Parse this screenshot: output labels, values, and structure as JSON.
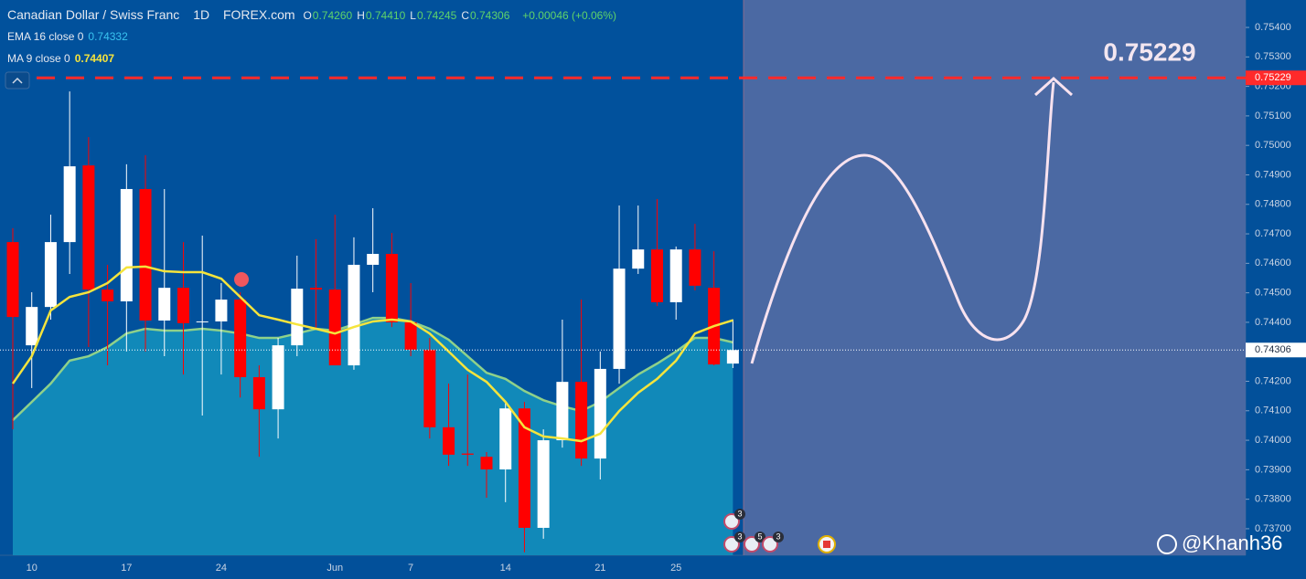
{
  "chart_data": {
    "type": "candlestick",
    "title": "Canadian Dollar / Swiss Franc",
    "interval": "1D",
    "source": "FOREX.com",
    "ohlc_header": [
      {
        "label": "O",
        "value": "0.74260"
      },
      {
        "label": "H",
        "value": "0.74410"
      },
      {
        "label": "L",
        "value": "0.74245"
      },
      {
        "label": "C",
        "value": "0.74306"
      }
    ],
    "change": "+0.00046 (+0.06%)",
    "categories": [
      null,
      "10",
      null,
      null,
      null,
      null,
      "17",
      null,
      null,
      null,
      null,
      "24",
      null,
      null,
      null,
      null,
      null,
      "Jun",
      null,
      null,
      null,
      "7",
      null,
      null,
      null,
      null,
      "14",
      null,
      null,
      null,
      null,
      "21",
      null,
      null,
      null,
      "25",
      null,
      null,
      null
    ],
    "open": [
      0.74672,
      0.74322,
      0.74452,
      0.74672,
      0.74932,
      0.74511,
      0.74471,
      0.74852,
      0.74406,
      0.74517,
      0.744,
      0.74403,
      0.74477,
      0.74214,
      0.74105,
      0.74322,
      0.74517,
      0.74511,
      0.74254,
      0.74595,
      0.74632,
      0.744,
      0.74307,
      0.74044,
      0.73955,
      0.73944,
      0.73901,
      0.74108,
      0.73703,
      0.74,
      0.74198,
      0.73938,
      0.74242,
      0.74582,
      0.74647,
      0.74468,
      0.74647,
      0.74517,
      0.7426
    ],
    "high": [
      0.74719,
      0.74502,
      0.74765,
      0.75183,
      0.75028,
      0.74595,
      0.74936,
      0.74967,
      0.74852,
      0.74672,
      0.74694,
      0.74533,
      0.74502,
      0.74254,
      0.74347,
      0.74626,
      0.74682,
      0.74765,
      0.74688,
      0.74787,
      0.74703,
      0.74533,
      0.74347,
      0.74192,
      0.74223,
      0.7396,
      0.7413,
      0.7413,
      0.74037,
      0.74409,
      0.74477,
      0.74301,
      0.74796,
      0.74796,
      0.74818,
      0.74657,
      0.74734,
      0.74641,
      0.7441
    ],
    "low": [
      0.74037,
      0.74177,
      0.74409,
      0.74564,
      0.74316,
      0.74254,
      0.74301,
      0.74301,
      0.74285,
      0.74223,
      0.74084,
      0.74223,
      0.74145,
      0.73944,
      0.74006,
      0.74285,
      0.74378,
      0.74254,
      0.74239,
      0.74502,
      0.74384,
      0.74285,
      0.74006,
      0.73913,
      0.73913,
      0.73805,
      0.7379,
      0.7362,
      0.73666,
      0.73975,
      0.73913,
      0.73867,
      0.74192,
      0.74564,
      0.74455,
      0.74409,
      0.74508,
      0.74254,
      0.74245
    ],
    "close": [
      0.74418,
      0.74452,
      0.74672,
      0.74929,
      0.74511,
      0.74471,
      0.74852,
      0.74406,
      0.74517,
      0.74397,
      0.74403,
      0.74477,
      0.74214,
      0.74105,
      0.74322,
      0.74514,
      0.74511,
      0.74254,
      0.74595,
      0.74632,
      0.744,
      0.74307,
      0.74044,
      0.73951,
      0.73951,
      0.73901,
      0.74108,
      0.73703,
      0.74,
      0.74198,
      0.73938,
      0.74242,
      0.74582,
      0.74647,
      0.74468,
      0.74647,
      0.74524,
      0.74257,
      0.74306
    ],
    "up_color": "#ffffff",
    "down_color": "#ff0000",
    "overlays": [
      {
        "name": "EMA 16 close 0",
        "last_label": "0.74332",
        "color": "#8fd18a",
        "fill": "#1189b9",
        "label_color": "#39c3f0",
        "values": [
          0.74068,
          0.7413,
          0.74192,
          0.7427,
          0.74285,
          0.74316,
          0.74362,
          0.74378,
          0.74372,
          0.74372,
          0.74378,
          0.74372,
          0.74362,
          0.74347,
          0.74347,
          0.74362,
          0.74378,
          0.74372,
          0.74393,
          0.74415,
          0.74415,
          0.74403,
          0.74378,
          0.74341,
          0.74285,
          0.74229,
          0.74208,
          0.74167,
          0.74136,
          0.74115,
          0.74099,
          0.7413,
          0.74177,
          0.74223,
          0.7426,
          0.74301,
          0.74347,
          0.74347,
          0.74332
        ]
      },
      {
        "name": "MA 9 close 0",
        "last_label": "0.74407",
        "color": "#f5e43c",
        "label_color": "#f5e43c",
        "values": [
          0.74192,
          0.74285,
          0.7444,
          0.74486,
          0.74502,
          0.74533,
          0.74586,
          0.74589,
          0.74573,
          0.7457,
          0.7457,
          0.74548,
          0.74486,
          0.74424,
          0.74409,
          0.74393,
          0.74378,
          0.74362,
          0.74384,
          0.74403,
          0.74409,
          0.74403,
          0.74362,
          0.74301,
          0.74239,
          0.74198,
          0.7413,
          0.74044,
          0.74013,
          0.74006,
          0.73997,
          0.74022,
          0.74099,
          0.74161,
          0.74208,
          0.7427,
          0.74362,
          0.74387,
          0.74407
        ]
      }
    ],
    "ylim": [
      0.7361,
      0.75493
    ],
    "yticks": [
      {
        "value": 0.737,
        "label": "0.73700"
      },
      {
        "value": 0.738,
        "label": "0.73800"
      },
      {
        "value": 0.739,
        "label": "0.73900"
      },
      {
        "value": 0.74,
        "label": "0.74000"
      },
      {
        "value": 0.741,
        "label": "0.74100"
      },
      {
        "value": 0.742,
        "label": "0.74200"
      },
      {
        "value": 0.743,
        "label": "0.74300"
      },
      {
        "value": 0.744,
        "label": "0.74400"
      },
      {
        "value": 0.745,
        "label": "0.74500"
      },
      {
        "value": 0.746,
        "label": "0.74600"
      },
      {
        "value": 0.747,
        "label": "0.74700"
      },
      {
        "value": 0.748,
        "label": "0.74800"
      },
      {
        "value": 0.749,
        "label": "0.74900"
      },
      {
        "value": 0.75,
        "label": "0.75000"
      },
      {
        "value": 0.751,
        "label": "0.75100"
      },
      {
        "value": 0.752,
        "label": "0.75200"
      },
      {
        "value": 0.753,
        "label": "0.75300"
      },
      {
        "value": 0.754,
        "label": "0.75400"
      }
    ],
    "price_line": {
      "value": 0.75229,
      "label": "0.75229",
      "color": "#ff2a2a"
    },
    "last_price": {
      "value": 0.74306,
      "label": "0.74306"
    },
    "target_annotation": "0.75229",
    "event_badges": [
      "3",
      "3",
      "5",
      "3"
    ],
    "watermark": "@Khanh36"
  }
}
